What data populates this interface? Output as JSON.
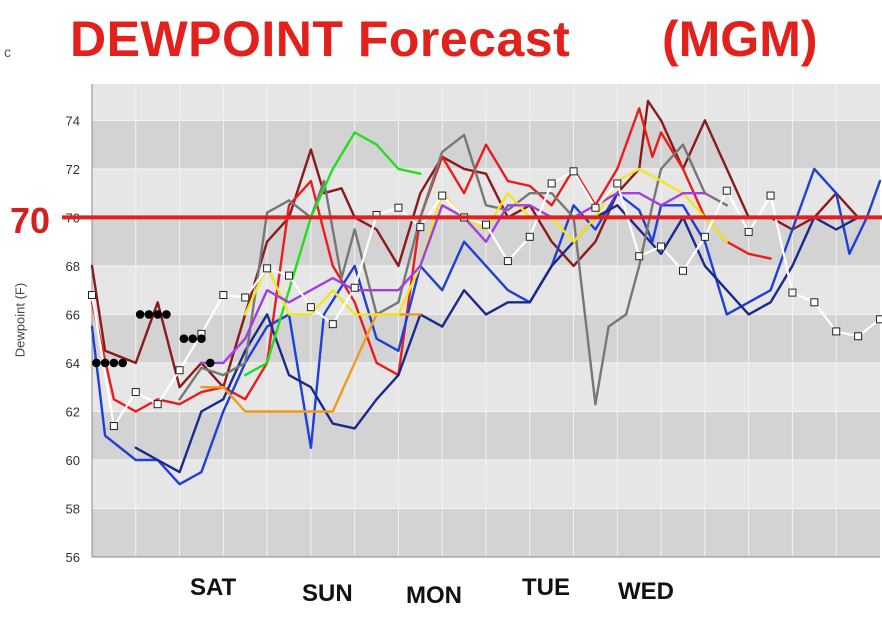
{
  "title": "DEWPOINT Forecast",
  "station": "(MGM)",
  "corner_mark": "c",
  "annotation_70": "70",
  "chart_data": {
    "type": "line",
    "title": "DEWPOINT Forecast (MGM)",
    "ylabel": "Dewpoint (F)",
    "ylim": [
      56,
      75.5
    ],
    "yticks": [
      56,
      58,
      60,
      62,
      64,
      66,
      68,
      70,
      72,
      74
    ],
    "x_range": [
      0,
      18
    ],
    "day_labels": [
      {
        "text": "SAT",
        "x": 2.8
      },
      {
        "text": "SUN",
        "x": 5.5
      },
      {
        "text": "MON",
        "x": 8.1
      },
      {
        "text": "TUE",
        "x": 10.6
      },
      {
        "text": "WED",
        "x": 12.9
      }
    ],
    "reference_line": {
      "value": 70,
      "color": "#e02020"
    },
    "series": [
      {
        "color": "#8b1a1a",
        "values": [
          [
            0,
            68
          ],
          [
            0.3,
            64.5
          ],
          [
            1,
            64
          ],
          [
            1.5,
            66.5
          ],
          [
            2,
            63
          ],
          [
            2.5,
            64
          ],
          [
            3,
            63
          ],
          [
            3.5,
            66
          ],
          [
            4,
            69
          ],
          [
            4.5,
            70
          ],
          [
            5,
            72.8
          ],
          [
            5.3,
            71
          ],
          [
            5.7,
            71.2
          ],
          [
            6,
            70
          ],
          [
            6.5,
            69.5
          ],
          [
            7,
            68
          ],
          [
            7.5,
            71
          ],
          [
            8,
            72.5
          ],
          [
            8.5,
            72
          ],
          [
            9,
            71.8
          ],
          [
            9.5,
            70
          ],
          [
            10,
            70.5
          ],
          [
            10.5,
            69
          ],
          [
            11,
            68
          ],
          [
            11.5,
            69
          ],
          [
            12,
            71
          ],
          [
            12.5,
            72
          ],
          [
            12.7,
            74.8
          ],
          [
            13,
            74
          ],
          [
            13.5,
            72
          ],
          [
            14,
            74
          ],
          [
            14.5,
            72
          ],
          [
            15,
            70
          ],
          [
            15.5,
            70
          ],
          [
            16,
            69.5
          ],
          [
            16.5,
            70
          ],
          [
            17,
            71
          ],
          [
            17.5,
            70
          ]
        ]
      },
      {
        "color": "#e81e1e",
        "values": [
          [
            0,
            66.5
          ],
          [
            0.5,
            62.5
          ],
          [
            1,
            62
          ],
          [
            1.5,
            62.5
          ],
          [
            2,
            62.3
          ],
          [
            2.5,
            62.8
          ],
          [
            3,
            63
          ],
          [
            3.5,
            62.5
          ],
          [
            4,
            64
          ],
          [
            4.5,
            70.5
          ],
          [
            5,
            71.5
          ],
          [
            5.5,
            68
          ],
          [
            6,
            66.5
          ],
          [
            6.5,
            64
          ],
          [
            7,
            63.5
          ],
          [
            7.5,
            70
          ],
          [
            8,
            72.5
          ],
          [
            8.5,
            71
          ],
          [
            9,
            73
          ],
          [
            9.5,
            71.5
          ],
          [
            10,
            71.3
          ],
          [
            10.5,
            70.5
          ],
          [
            11,
            72
          ],
          [
            11.5,
            70.5
          ],
          [
            12,
            72
          ],
          [
            12.5,
            74.5
          ],
          [
            12.8,
            72.5
          ],
          [
            13,
            73.5
          ],
          [
            13.5,
            72
          ],
          [
            14,
            70
          ],
          [
            14.5,
            69
          ],
          [
            15,
            68.5
          ],
          [
            15.5,
            68.3
          ]
        ]
      },
      {
        "color": "#1f3fd6",
        "values": [
          [
            0,
            65.5
          ],
          [
            0.3,
            61
          ],
          [
            1,
            60
          ],
          [
            1.5,
            60
          ],
          [
            2,
            59
          ],
          [
            2.5,
            59.5
          ],
          [
            3,
            62
          ],
          [
            3.5,
            64
          ],
          [
            4,
            65.5
          ],
          [
            4.5,
            66
          ],
          [
            5,
            60.5
          ],
          [
            5.3,
            66
          ],
          [
            6,
            68
          ],
          [
            6.5,
            65
          ],
          [
            7,
            64.5
          ],
          [
            7.5,
            68
          ],
          [
            8,
            67
          ],
          [
            8.5,
            69
          ],
          [
            9,
            68
          ],
          [
            9.5,
            67
          ],
          [
            10,
            66.5
          ],
          [
            10.5,
            68
          ],
          [
            11,
            70.5
          ],
          [
            11.5,
            69.5
          ],
          [
            12,
            71
          ],
          [
            12.5,
            70.3
          ],
          [
            12.8,
            69
          ],
          [
            13,
            70.5
          ],
          [
            13.5,
            70.5
          ],
          [
            14,
            69
          ],
          [
            14.5,
            66
          ],
          [
            15,
            66.5
          ],
          [
            15.5,
            67
          ],
          [
            16,
            69.5
          ],
          [
            16.5,
            72
          ],
          [
            17,
            71
          ],
          [
            17.3,
            68.5
          ],
          [
            17.7,
            70
          ],
          [
            18,
            71.5
          ]
        ]
      },
      {
        "color": "#1a2a8c",
        "values": [
          [
            1,
            60.5
          ],
          [
            1.5,
            60
          ],
          [
            2,
            59.5
          ],
          [
            2.5,
            62
          ],
          [
            3,
            62.5
          ],
          [
            3.5,
            64.5
          ],
          [
            4,
            66
          ],
          [
            4.5,
            63.5
          ],
          [
            5,
            63
          ],
          [
            5.5,
            61.5
          ],
          [
            6,
            61.3
          ],
          [
            6.5,
            62.5
          ],
          [
            7,
            63.5
          ],
          [
            7.5,
            66
          ],
          [
            8,
            65.5
          ],
          [
            8.5,
            67
          ],
          [
            9,
            66
          ],
          [
            9.5,
            66.5
          ],
          [
            10,
            66.5
          ],
          [
            10.5,
            68
          ],
          [
            11,
            69
          ],
          [
            11.5,
            70
          ],
          [
            12,
            70.5
          ],
          [
            12.5,
            69.5
          ],
          [
            13,
            68.5
          ],
          [
            13.5,
            70
          ],
          [
            14,
            68
          ],
          [
            14.5,
            67
          ],
          [
            15,
            66
          ],
          [
            15.5,
            66.5
          ],
          [
            16,
            68
          ],
          [
            16.5,
            70
          ],
          [
            17,
            69.5
          ],
          [
            17.5,
            70
          ]
        ]
      },
      {
        "color": "#777777",
        "values": [
          [
            2,
            62.5
          ],
          [
            2.5,
            63.8
          ],
          [
            3,
            63.5
          ],
          [
            3.5,
            64
          ],
          [
            4,
            70.2
          ],
          [
            4.5,
            70.7
          ],
          [
            5,
            70
          ],
          [
            5.3,
            71.5
          ],
          [
            5.7,
            67.5
          ],
          [
            6,
            69.5
          ],
          [
            6.5,
            66
          ],
          [
            7,
            66.5
          ],
          [
            7.5,
            70
          ],
          [
            8,
            72.7
          ],
          [
            8.5,
            73.4
          ],
          [
            9,
            70.5
          ],
          [
            9.5,
            70.3
          ],
          [
            10,
            71
          ],
          [
            10.5,
            71
          ],
          [
            11,
            70
          ],
          [
            11.5,
            62.3
          ],
          [
            11.8,
            65.5
          ],
          [
            12.2,
            66
          ],
          [
            12.5,
            68
          ],
          [
            12.8,
            70.5
          ],
          [
            13,
            72
          ],
          [
            13.5,
            73
          ],
          [
            14,
            71
          ],
          [
            14.5,
            70.5
          ]
        ]
      },
      {
        "color": "#22dd22",
        "values": [
          [
            3.5,
            63.5
          ],
          [
            4,
            64
          ],
          [
            4.5,
            67
          ],
          [
            5,
            70
          ],
          [
            5.5,
            72
          ],
          [
            6,
            73.5
          ],
          [
            6.5,
            73
          ],
          [
            7,
            72
          ],
          [
            7.5,
            71.8
          ]
        ]
      },
      {
        "color": "#f29a1e",
        "values": [
          [
            2.5,
            63
          ],
          [
            3,
            63
          ],
          [
            3.5,
            62
          ],
          [
            4,
            62
          ],
          [
            4.5,
            62
          ],
          [
            5,
            62
          ],
          [
            5.5,
            62
          ],
          [
            6,
            64
          ],
          [
            6.5,
            66
          ],
          [
            7,
            66
          ],
          [
            7.5,
            66
          ]
        ]
      },
      {
        "color": "#f2e624",
        "values": [
          [
            3.5,
            66
          ],
          [
            4,
            68
          ],
          [
            4.5,
            66
          ],
          [
            5,
            66
          ],
          [
            5.5,
            67
          ],
          [
            6,
            66
          ],
          [
            6.5,
            66
          ],
          [
            7,
            66
          ],
          [
            7.5,
            68
          ],
          [
            8,
            71
          ],
          [
            8.5,
            70
          ],
          [
            9,
            69.5
          ],
          [
            9.5,
            71
          ],
          [
            10,
            70
          ],
          [
            10.5,
            70
          ],
          [
            11,
            69
          ],
          [
            11.5,
            70
          ],
          [
            12,
            71.5
          ],
          [
            12.5,
            72
          ],
          [
            13,
            71.5
          ],
          [
            13.5,
            71
          ],
          [
            14,
            70
          ],
          [
            14.5,
            69
          ]
        ]
      },
      {
        "color": "#a040e0",
        "values": [
          [
            2.5,
            64
          ],
          [
            3,
            64
          ],
          [
            3.5,
            65
          ],
          [
            4,
            67
          ],
          [
            4.5,
            66.5
          ],
          [
            5,
            67
          ],
          [
            5.5,
            67.5
          ],
          [
            6,
            67
          ],
          [
            6.5,
            67
          ],
          [
            7,
            67
          ],
          [
            7.5,
            68
          ],
          [
            8,
            70.5
          ],
          [
            8.5,
            70
          ],
          [
            9,
            69
          ],
          [
            9.5,
            70.5
          ],
          [
            10,
            70.5
          ],
          [
            10.5,
            70
          ],
          [
            11,
            70
          ],
          [
            11.5,
            70.5
          ],
          [
            12,
            71
          ],
          [
            12.5,
            71
          ],
          [
            13,
            70.5
          ],
          [
            13.5,
            71
          ],
          [
            14,
            71
          ]
        ]
      }
    ],
    "mean_series": {
      "color": "#ffffff",
      "values": [
        [
          0,
          66.8
        ],
        [
          0.5,
          61.4
        ],
        [
          1,
          62.8
        ],
        [
          1.5,
          62.3
        ],
        [
          2,
          63.7
        ],
        [
          2.5,
          65.2
        ],
        [
          3,
          66.8
        ],
        [
          3.5,
          66.7
        ],
        [
          4,
          67.9
        ],
        [
          4.5,
          67.6
        ],
        [
          5,
          66.3
        ],
        [
          5.5,
          65.6
        ],
        [
          6,
          67.1
        ],
        [
          6.5,
          70.1
        ],
        [
          7,
          70.4
        ],
        [
          7.5,
          69.6
        ],
        [
          8,
          70.9
        ],
        [
          8.5,
          70
        ],
        [
          9,
          69.7
        ],
        [
          9.5,
          68.2
        ],
        [
          10,
          69.2
        ],
        [
          10.5,
          71.4
        ],
        [
          11,
          71.9
        ],
        [
          11.5,
          70.4
        ],
        [
          12,
          71.4
        ],
        [
          12.5,
          68.4
        ],
        [
          13,
          68.8
        ],
        [
          13.5,
          67.8
        ],
        [
          14,
          69.2
        ],
        [
          14.5,
          71.1
        ],
        [
          15,
          69.4
        ],
        [
          15.5,
          70.9
        ],
        [
          16,
          66.9
        ],
        [
          16.5,
          66.5
        ],
        [
          17,
          65.3
        ],
        [
          17.5,
          65.1
        ],
        [
          18,
          65.8
        ]
      ]
    },
    "observed_points": [
      [
        0.1,
        64
      ],
      [
        0.3,
        64
      ],
      [
        0.5,
        64
      ],
      [
        0.7,
        64
      ],
      [
        1.1,
        66
      ],
      [
        1.3,
        66
      ],
      [
        1.5,
        66
      ],
      [
        1.7,
        66
      ],
      [
        2.1,
        65
      ],
      [
        2.3,
        65
      ],
      [
        2.5,
        65
      ],
      [
        2.7,
        64
      ]
    ]
  }
}
